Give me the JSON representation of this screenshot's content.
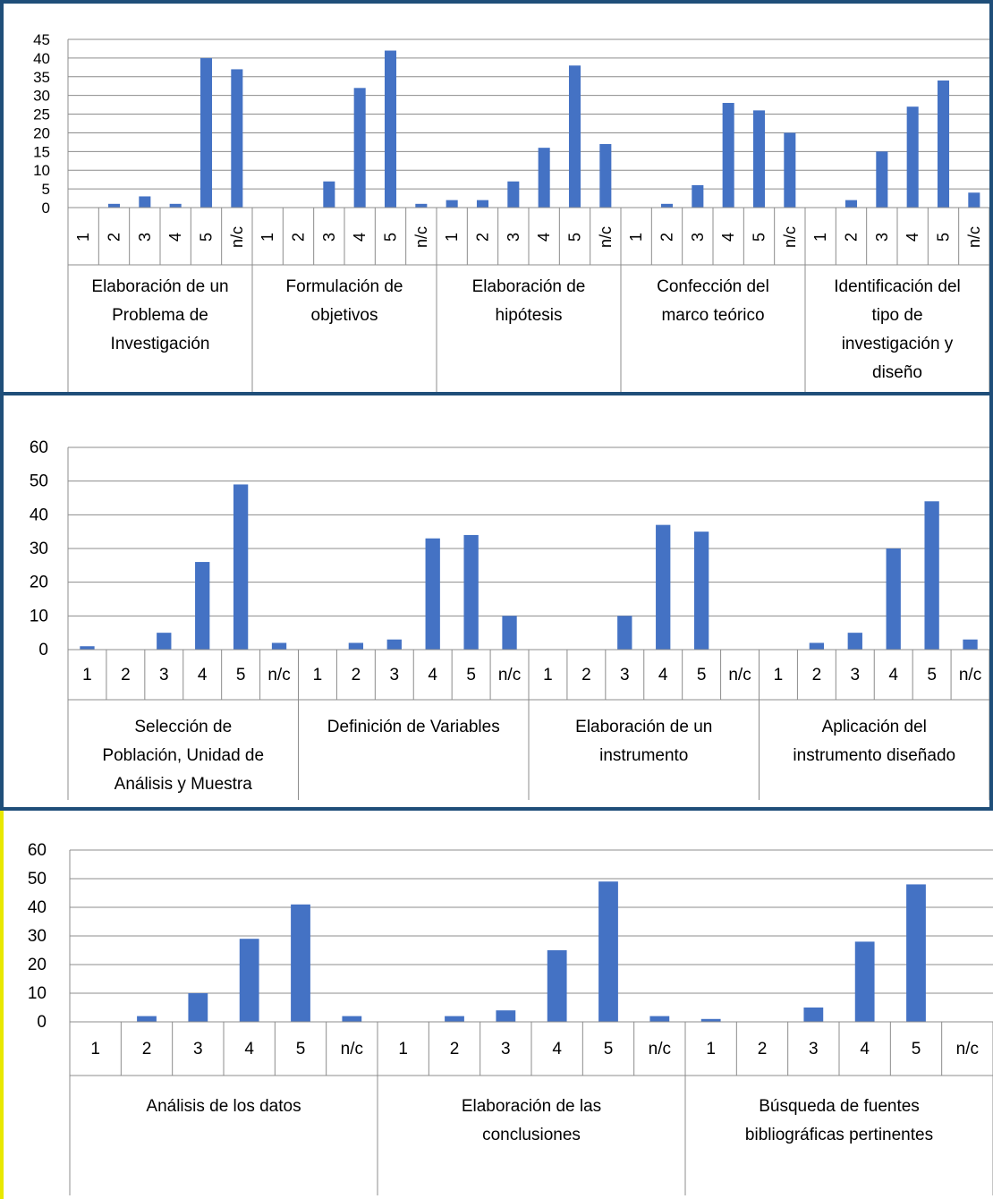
{
  "bar_color": "#4472c4",
  "chart_data": [
    {
      "type": "bar",
      "ylim": [
        0,
        45
      ],
      "yticks": [
        0,
        5,
        10,
        15,
        20,
        25,
        30,
        35,
        40,
        45
      ],
      "grid": true,
      "subcategories": [
        "1",
        "2",
        "3",
        "4",
        "5",
        "n/c"
      ],
      "groups": [
        {
          "label_lines": [
            "Elaboración de un",
            "Problema de",
            "Investigación"
          ],
          "values": [
            0,
            1,
            3,
            1,
            40,
            37
          ]
        },
        {
          "label_lines": [
            "Formulación de",
            "objetivos"
          ],
          "values": [
            0,
            0,
            7,
            32,
            42,
            1
          ]
        },
        {
          "label_lines": [
            "Elaboración de",
            "hipótesis"
          ],
          "values": [
            2,
            2,
            7,
            16,
            38,
            17
          ]
        },
        {
          "label_lines": [
            "Confección del",
            "marco teórico"
          ],
          "values": [
            0,
            1,
            6,
            28,
            26,
            20
          ]
        },
        {
          "label_lines": [
            "Identificación del",
            "tipo de",
            "investigación y",
            "diseño"
          ],
          "values": [
            0,
            2,
            15,
            27,
            34,
            4
          ]
        }
      ]
    },
    {
      "type": "bar",
      "ylim": [
        0,
        60
      ],
      "yticks": [
        0,
        10,
        20,
        30,
        40,
        50,
        60
      ],
      "grid": true,
      "subcategories": [
        "1",
        "2",
        "3",
        "4",
        "5",
        "n/c"
      ],
      "groups": [
        {
          "label_lines": [
            "Selección de",
            "Población, Unidad de",
            "Análisis y Muestra"
          ],
          "values": [
            1,
            0,
            5,
            26,
            49,
            2
          ]
        },
        {
          "label_lines": [
            "Definición de Variables"
          ],
          "values": [
            0,
            2,
            3,
            33,
            34,
            10
          ]
        },
        {
          "label_lines": [
            "Elaboración de un",
            "instrumento"
          ],
          "values": [
            0,
            0,
            10,
            37,
            35,
            0
          ]
        },
        {
          "label_lines": [
            "Aplicación del",
            "instrumento diseñado"
          ],
          "values": [
            0,
            2,
            5,
            30,
            44,
            3
          ]
        }
      ]
    },
    {
      "type": "bar",
      "ylim": [
        0,
        60
      ],
      "yticks": [
        0,
        10,
        20,
        30,
        40,
        50,
        60
      ],
      "grid": true,
      "subcategories": [
        "1",
        "2",
        "3",
        "4",
        "5",
        "n/c"
      ],
      "groups": [
        {
          "label_lines": [
            "Análisis de los datos"
          ],
          "values": [
            0,
            2,
            10,
            29,
            41,
            2
          ]
        },
        {
          "label_lines": [
            "Elaboración de las",
            "conclusiones"
          ],
          "values": [
            0,
            2,
            4,
            25,
            49,
            2
          ]
        },
        {
          "label_lines": [
            "Búsqueda de fuentes",
            "bibliográficas pertinentes"
          ],
          "values": [
            1,
            0,
            5,
            28,
            48,
            0
          ]
        }
      ]
    }
  ]
}
